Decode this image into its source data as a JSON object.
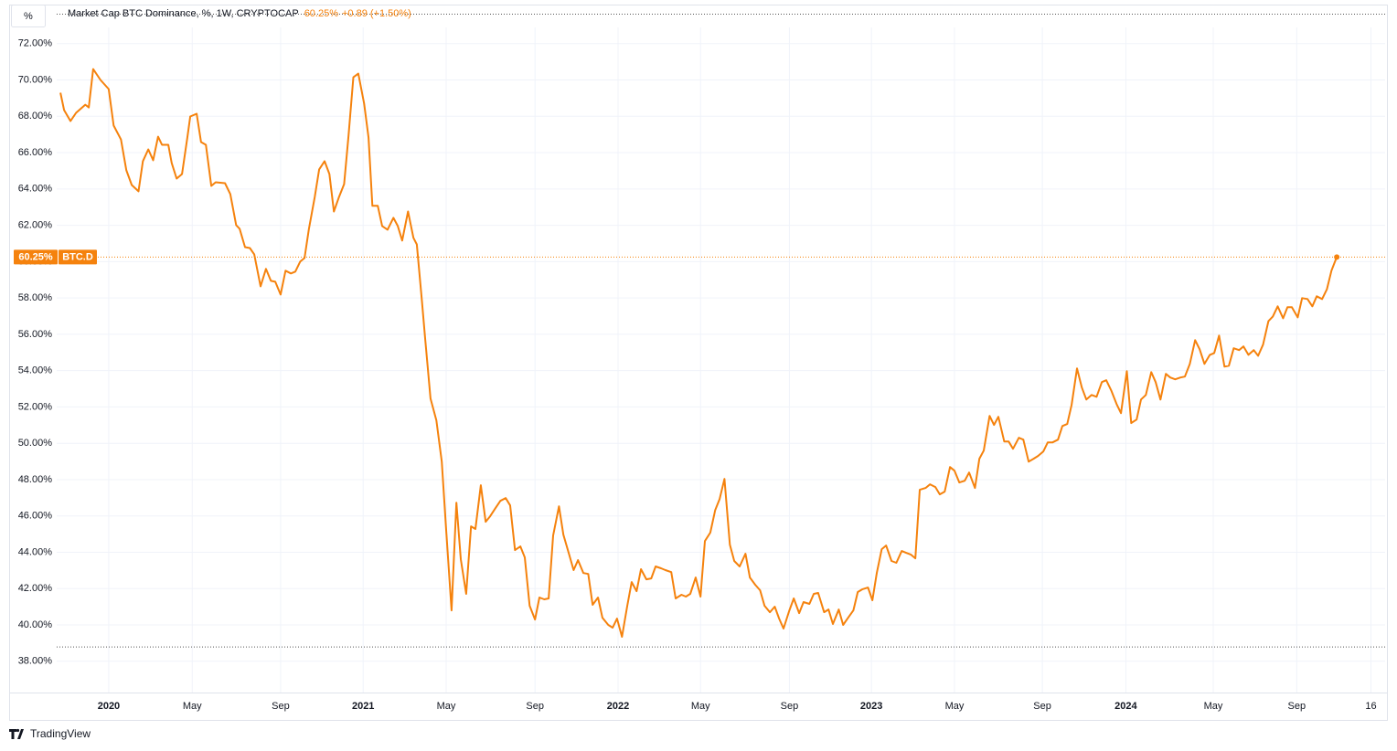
{
  "chart_data": {
    "type": "line",
    "title": "Market Cap BTC Dominance, %, 1W, CRYPTOCAP",
    "last_label": "60.25%",
    "change_label": "+0.89 (+1.50%)",
    "unit_button": "%",
    "branding": "TradingView",
    "series": [
      {
        "name": "BTC.D",
        "color": "#f5820d",
        "x": [
          0,
          0.75,
          2.06,
          3.2,
          5.1,
          5.8,
          6.7,
          8.2,
          9.9,
          10.9,
          12.4,
          13.5,
          14.6,
          16.0,
          16.9,
          18.0,
          19.0,
          20.0,
          20.8,
          22.1,
          22.8,
          23.8,
          24.9,
          26.0,
          26.6,
          27.9,
          28.8,
          29.8,
          30.9,
          31.8,
          33.7,
          34.8,
          36.0,
          36.7,
          37.8,
          38.8,
          39.7,
          41.0,
          42.1,
          43.1,
          44.0,
          45.1,
          46.1,
          47.2,
          48.1,
          49.1,
          50.0,
          50.9,
          52.1,
          53.0,
          54.1,
          55.1,
          56.0,
          57.0,
          58.1,
          59.0,
          60.0,
          61.0,
          62.2,
          63.1,
          63.9,
          65.0,
          65.9,
          67.0,
          68.2,
          69.1,
          70.0,
          71.2,
          72.3,
          73.0,
          74.0,
          74.7,
          75.8,
          77.0,
          78.1,
          79.0,
          80.1,
          81.1,
          82.0,
          83.1,
          84.1,
          85.0,
          86.1,
          87.1,
          88.0,
          89.1,
          90.1,
          91.2,
          92.1,
          93.1,
          94.2,
          95.1,
          96.1,
          97.2,
          98.1,
          99.1,
          100.0,
          100.9,
          102.1,
          103.0,
          104.1,
          105.1,
          106.0,
          107.1,
          108.1,
          109.0,
          110.1,
          111.0,
          112.2,
          113.1,
          114.0,
          115.0,
          116.1,
          117.0,
          118.0,
          118.9,
          120.0,
          121.0,
          121.9,
          123.0,
          123.9,
          125.1,
          126.0,
          127.2,
          128.1,
          129.0,
          130.1,
          131.1,
          132.0,
          133.1,
          134.1,
          135.0,
          136.0,
          137.1,
          138.0,
          139.1,
          140.3,
          141.2,
          142.3,
          143.3,
          144.2,
          145.3,
          146.3,
          147.2,
          148.1,
          149.3,
          150.2,
          151.3,
          152.2,
          153.4,
          154.3,
          155.2,
          156.4,
          157.3,
          158.2,
          159.4,
          160.3,
          161.2,
          162.4,
          163.3,
          164.2,
          165.4,
          166.3,
          167.2,
          168.2,
          169.1,
          170.2,
          171.2,
          172.3,
          173.2,
          174.2,
          175.1,
          176.0,
          177.2,
          178.1,
          179.2,
          180.1,
          181.1,
          182.2,
          183.1,
          184.1,
          185.2,
          186.1,
          187.3,
          188.2,
          189.1,
          190.3,
          191.2,
          192.1,
          193.3,
          194.2,
          195.1,
          196.3,
          197.2,
          198.3,
          199.3,
          200.2,
          201.3,
          202.2,
          203.2,
          204.3,
          205.2,
          206.2,
          207.1,
          208.2,
          209.2,
          210.1,
          211.2,
          212.2,
          213.3,
          214.2,
          215.2,
          216.3,
          217.2,
          218.4,
          219.3,
          220.4,
          221.3,
          222.3,
          223.4,
          224.3,
          225.3,
          226.4,
          227.3,
          228.3,
          229.4,
          230.3,
          231.3,
          232.4,
          233.3,
          234.3,
          235.4,
          236.3,
          237.3,
          238.4,
          239.3,
          240.3,
          241.4,
          242.3,
          243.3,
          244.4,
          245.3,
          246.3,
          247.4,
          248.3,
          249.3,
          250.4,
          251.3,
          252.2,
          253.4,
          254.3,
          255.4,
          256.4,
          257.3,
          258.4,
          259.4,
          260.3,
          261.4
        ],
        "values": [
          69.3,
          68.34,
          67.74,
          68.19,
          68.64,
          68.49,
          70.6,
          70.0,
          69.5,
          67.49,
          66.73,
          65.03,
          64.22,
          63.87,
          65.53,
          66.18,
          65.58,
          66.88,
          66.43,
          66.43,
          65.43,
          64.57,
          64.82,
          66.83,
          67.99,
          68.14,
          66.58,
          66.43,
          64.17,
          64.37,
          64.32,
          63.72,
          62.01,
          61.81,
          60.8,
          60.75,
          60.4,
          58.64,
          59.6,
          58.94,
          58.89,
          58.19,
          59.5,
          59.35,
          59.45,
          60.0,
          60.2,
          61.81,
          63.57,
          65.08,
          65.53,
          64.82,
          62.76,
          63.52,
          64.27,
          66.93,
          70.15,
          70.35,
          68.69,
          66.83,
          63.07,
          63.07,
          61.96,
          61.76,
          62.41,
          61.96,
          61.16,
          62.76,
          61.31,
          60.95,
          57.94,
          55.78,
          52.46,
          51.26,
          48.99,
          45.23,
          40.8,
          46.73,
          43.62,
          41.71,
          45.43,
          45.28,
          47.69,
          45.68,
          45.98,
          46.43,
          46.83,
          46.98,
          46.58,
          44.12,
          44.32,
          43.72,
          41.06,
          40.3,
          41.51,
          41.41,
          41.46,
          44.92,
          46.53,
          44.97,
          43.97,
          43.02,
          43.57,
          42.86,
          42.81,
          41.11,
          41.51,
          40.4,
          40.0,
          39.85,
          40.35,
          39.35,
          41.06,
          42.36,
          41.86,
          43.07,
          42.51,
          42.56,
          43.22,
          43.12,
          43.02,
          42.91,
          41.46,
          41.66,
          41.56,
          41.71,
          42.61,
          41.56,
          44.62,
          45.08,
          46.33,
          46.93,
          48.04,
          44.42,
          43.52,
          43.22,
          43.92,
          42.61,
          42.21,
          41.91,
          41.06,
          40.7,
          41.01,
          40.35,
          39.8,
          40.8,
          41.46,
          40.65,
          41.26,
          41.16,
          41.71,
          41.76,
          40.7,
          40.85,
          40.05,
          40.85,
          40.0,
          40.35,
          40.8,
          41.81,
          41.96,
          42.06,
          41.36,
          42.86,
          44.17,
          44.37,
          43.52,
          43.42,
          44.07,
          43.97,
          43.87,
          43.67,
          47.44,
          47.54,
          47.74,
          47.59,
          47.19,
          47.34,
          48.69,
          48.49,
          47.84,
          47.94,
          48.39,
          47.54,
          49.15,
          49.6,
          51.51,
          51.01,
          51.46,
          50.1,
          50.1,
          49.7,
          50.3,
          50.2,
          48.99,
          49.15,
          49.3,
          49.55,
          50.05,
          50.05,
          50.2,
          50.95,
          51.06,
          52.11,
          54.12,
          53.07,
          52.41,
          52.66,
          52.56,
          53.37,
          53.47,
          52.91,
          52.16,
          51.66,
          53.97,
          51.11,
          51.31,
          52.41,
          52.66,
          53.92,
          53.37,
          52.41,
          53.82,
          53.62,
          53.52,
          53.62,
          53.67,
          54.37,
          55.68,
          55.18,
          54.37,
          54.87,
          54.97,
          55.93,
          54.22,
          54.27,
          55.23,
          55.13,
          55.33,
          54.87,
          55.13,
          54.82,
          55.43,
          56.73,
          56.98,
          57.54,
          56.88,
          57.49,
          57.49,
          56.93,
          57.99,
          57.94,
          57.54,
          58.09,
          57.94,
          58.49,
          59.5,
          60.25
        ]
      }
    ],
    "xlim": [
      -10.5,
      271.3
    ],
    "ylim": [
      36.28,
      74
    ],
    "xticks": [
      {
        "value": 9.9,
        "label": "2020",
        "major": true
      },
      {
        "value": 27.0,
        "label": "May"
      },
      {
        "value": 45.1,
        "label": "Sep"
      },
      {
        "value": 62.0,
        "label": "2021",
        "major": true
      },
      {
        "value": 79.0,
        "label": "May"
      },
      {
        "value": 97.2,
        "label": "Sep"
      },
      {
        "value": 114.2,
        "label": "2022",
        "major": true
      },
      {
        "value": 131.1,
        "label": "May"
      },
      {
        "value": 149.3,
        "label": "Sep"
      },
      {
        "value": 166.1,
        "label": "2023",
        "major": true
      },
      {
        "value": 183.1,
        "label": "May"
      },
      {
        "value": 201.1,
        "label": "Sep"
      },
      {
        "value": 218.2,
        "label": "2024",
        "major": true
      },
      {
        "value": 236.1,
        "label": "May"
      },
      {
        "value": 253.2,
        "label": "Sep"
      },
      {
        "value": 268.4,
        "label": "16"
      }
    ],
    "yticks": [
      {
        "value": 38,
        "label": "38.00%"
      },
      {
        "value": 40,
        "label": "40.00%"
      },
      {
        "value": 42,
        "label": "42.00%"
      },
      {
        "value": 44,
        "label": "44.00%"
      },
      {
        "value": 46,
        "label": "46.00%"
      },
      {
        "value": 48,
        "label": "48.00%"
      },
      {
        "value": 50,
        "label": "50.00%"
      },
      {
        "value": 52,
        "label": "52.00%"
      },
      {
        "value": 54,
        "label": "54.00%"
      },
      {
        "value": 56,
        "label": "56.00%"
      },
      {
        "value": 58,
        "label": "58.00%"
      },
      {
        "value": 60,
        "label": "60.00%"
      },
      {
        "value": 62,
        "label": "62.00%"
      },
      {
        "value": 64,
        "label": "64.00%"
      },
      {
        "value": 66,
        "label": "66.00%"
      },
      {
        "value": 68,
        "label": "68.00%"
      },
      {
        "value": 70,
        "label": "70.00%"
      },
      {
        "value": 72,
        "label": "72.00%"
      }
    ],
    "range_lines": [
      73.62,
      38.79
    ],
    "grid": true
  }
}
